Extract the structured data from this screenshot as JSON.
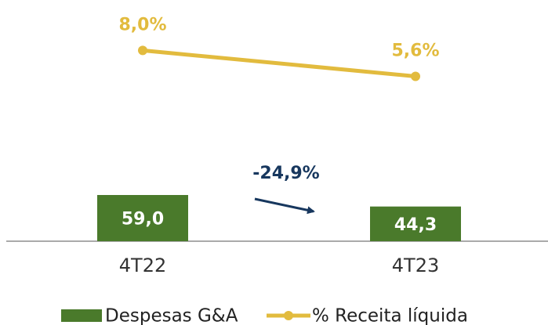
{
  "chart_data": {
    "type": "combo",
    "categories": [
      "4T22",
      "4T23"
    ],
    "series": [
      {
        "name": "Despesas G&A",
        "type": "bar",
        "color": "#4a7a2b",
        "values": [
          59.0,
          44.3
        ],
        "value_labels": [
          "59,0",
          "44,3"
        ]
      },
      {
        "name": "% Receita líquida",
        "type": "line",
        "axis": "y2",
        "color": "#e2bb3e",
        "values": [
          8.0,
          5.6
        ],
        "value_labels": [
          "8,0%",
          "5,6%"
        ]
      }
    ],
    "annotations": [
      "-24,9%"
    ],
    "ylim": [
      0,
      300
    ],
    "y2lim": [
      -9.7,
      12.1
    ],
    "legend": "bottom"
  }
}
